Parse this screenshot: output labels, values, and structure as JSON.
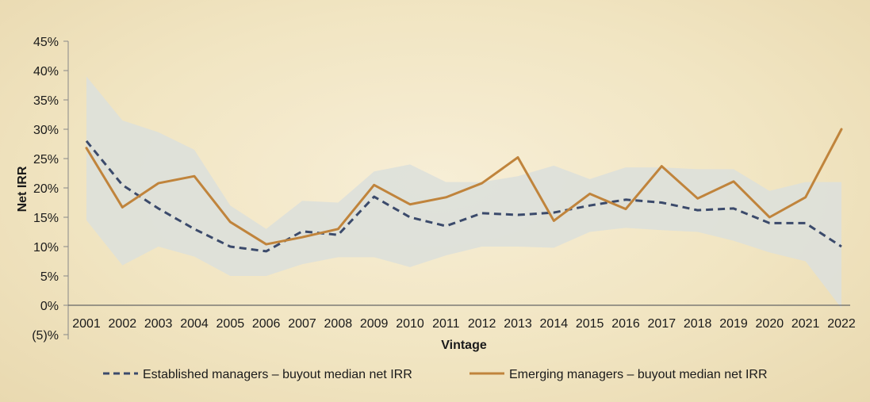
{
  "chart_data": {
    "type": "line",
    "title": "",
    "xlabel": "Vintage",
    "ylabel": "Net IRR",
    "ylim": [
      -5,
      45
    ],
    "y_ticks": [
      45,
      40,
      35,
      30,
      25,
      20,
      15,
      10,
      5,
      0,
      -5
    ],
    "y_tick_labels": [
      "45%",
      "40%",
      "35%",
      "30%",
      "25%",
      "20%",
      "15%",
      "10%",
      "5%",
      "0%",
      "(5)%"
    ],
    "categories": [
      "2001",
      "2002",
      "2003",
      "2004",
      "2005",
      "2006",
      "2007",
      "2008",
      "2009",
      "2010",
      "2011",
      "2012",
      "2013",
      "2014",
      "2015",
      "2016",
      "2017",
      "2018",
      "2019",
      "2020",
      "2021",
      "2022"
    ],
    "series": [
      {
        "name": "Established managers – buyout median net IRR",
        "style": "dashed",
        "color": "#3b4a6b",
        "values": [
          28,
          20.5,
          16.5,
          13,
          10,
          9.2,
          12.6,
          12,
          18.5,
          15,
          13.5,
          15.7,
          15.4,
          15.8,
          17,
          18,
          17.5,
          16.2,
          16.5,
          14,
          14,
          10
        ]
      },
      {
        "name": "Emerging managers – buyout median net IRR",
        "style": "solid",
        "color": "#c0843c",
        "values": [
          26.8,
          16.7,
          20.8,
          22,
          14.2,
          10.4,
          11.6,
          13,
          20.5,
          17.2,
          18.4,
          20.8,
          25.2,
          14.4,
          19,
          16.4,
          23.7,
          18.2,
          21.1,
          15,
          18.4,
          30
        ]
      }
    ],
    "range_band": {
      "name": "Established managers range",
      "color": "#dde0da",
      "upper": [
        39,
        31.5,
        29.5,
        26.5,
        17,
        13,
        17.8,
        17.5,
        22.8,
        24,
        21,
        21,
        22,
        23.8,
        21.5,
        23.5,
        23.5,
        23.2,
        23.2,
        19.5,
        21,
        21
      ],
      "lower": [
        14.5,
        6.8,
        10,
        8.3,
        5,
        5,
        7,
        8.2,
        8.2,
        6.5,
        8.5,
        10,
        10,
        9.8,
        12.5,
        13.2,
        12.8,
        12.5,
        11,
        9,
        7.5,
        -0.5
      ]
    },
    "legend_position": "bottom",
    "grid": false
  }
}
